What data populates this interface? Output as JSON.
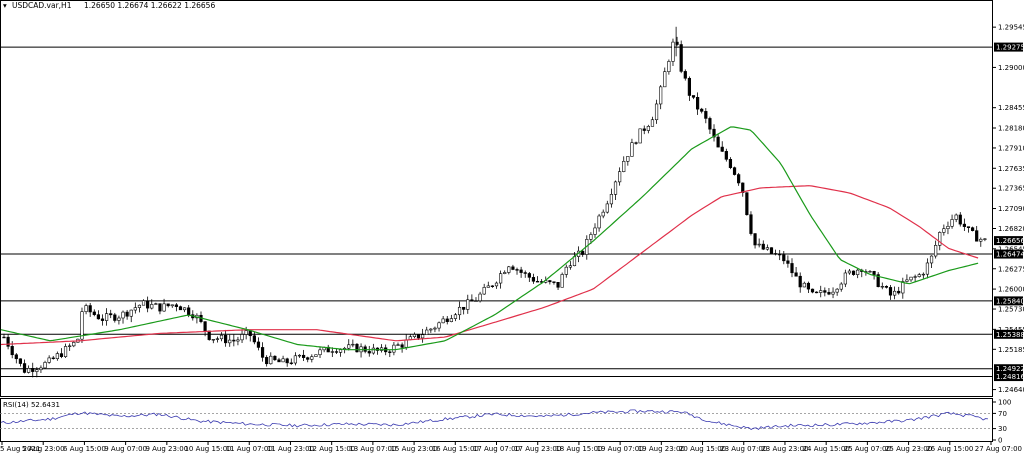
{
  "header": {
    "symbol": "USDCAD.var,H1",
    "ohlc": "1.26650 1.26674 1.26622 1.26656"
  },
  "colors": {
    "up_candle": "#000000",
    "down_candle": "#000000",
    "ma_fast": "#1a9a1a",
    "ma_slow": "#e0304a",
    "rsi_line": "#3a3ab0",
    "level_line": "#000000"
  },
  "chart_data": {
    "type": "line",
    "title": "",
    "price_axis": {
      "ticks": [
        "1.29545",
        "1.29000",
        "1.28455",
        "1.28180",
        "1.27910",
        "1.27635",
        "1.27365",
        "1.27090",
        "1.26820",
        "1.26545",
        "1.26275",
        "1.26000",
        "1.25730",
        "1.25455",
        "1.25185",
        "1.24640"
      ],
      "ylim": [
        1.2458,
        1.2975
      ]
    },
    "price_levels": [
      {
        "label": "1.29275",
        "value": 1.29275
      },
      {
        "label": "1.26474",
        "value": 1.26474
      },
      {
        "label": "1.25840",
        "value": 1.2584
      },
      {
        "label": "1.25388",
        "value": 1.25388
      },
      {
        "label": "1.24922",
        "value": 1.24922
      },
      {
        "label": "1.24816",
        "value": 1.24816
      }
    ],
    "current_price": {
      "label": "1.26656",
      "value": 1.26656
    },
    "time_axis": [
      "5 Aug 2021",
      "5 Aug 23:00",
      "6 Aug 15:00",
      "9 Aug 07:00",
      "9 Aug 23:00",
      "10 Aug 15:00",
      "11 Aug 07:00",
      "11 Aug 23:00",
      "12 Aug 15:00",
      "13 Aug 07:00",
      "15 Aug 23:00",
      "16 Aug 15:00",
      "17 Aug 07:00",
      "17 Aug 23:00",
      "18 Aug 15:00",
      "19 Aug 07:00",
      "19 Aug 23:00",
      "20 Aug 15:00",
      "23 Aug 07:00",
      "23 Aug 23:00",
      "24 Aug 15:00",
      "25 Aug 07:00",
      "25 Aug 23:00",
      "26 Aug 15:00",
      "27 Aug 07:00"
    ],
    "price_keypoints": [
      [
        0,
        1.2535
      ],
      [
        0.02,
        1.249
      ],
      [
        0.045,
        1.25
      ],
      [
        0.075,
        1.253
      ],
      [
        0.08,
        1.2575
      ],
      [
        0.1,
        1.256
      ],
      [
        0.12,
        1.2565
      ],
      [
        0.14,
        1.258
      ],
      [
        0.16,
        1.2575
      ],
      [
        0.175,
        1.258
      ],
      [
        0.195,
        1.2565
      ],
      [
        0.21,
        1.2535
      ],
      [
        0.235,
        1.253
      ],
      [
        0.25,
        1.254
      ],
      [
        0.265,
        1.2505
      ],
      [
        0.285,
        1.25
      ],
      [
        0.31,
        1.251
      ],
      [
        0.335,
        1.252
      ],
      [
        0.36,
        1.252
      ],
      [
        0.385,
        1.2515
      ],
      [
        0.405,
        1.2525
      ],
      [
        0.42,
        1.2535
      ],
      [
        0.44,
        1.255
      ],
      [
        0.46,
        1.257
      ],
      [
        0.48,
        1.2585
      ],
      [
        0.5,
        1.261
      ],
      [
        0.515,
        1.2635
      ],
      [
        0.53,
        1.262
      ],
      [
        0.545,
        1.261
      ],
      [
        0.565,
        1.2605
      ],
      [
        0.575,
        1.2635
      ],
      [
        0.59,
        1.265
      ],
      [
        0.6,
        1.268
      ],
      [
        0.615,
        1.272
      ],
      [
        0.63,
        1.277
      ],
      [
        0.645,
        1.2805
      ],
      [
        0.66,
        1.283
      ],
      [
        0.668,
        1.286
      ],
      [
        0.675,
        1.29
      ],
      [
        0.684,
        1.294
      ],
      [
        0.69,
        1.29
      ],
      [
        0.7,
        1.286
      ],
      [
        0.715,
        1.283
      ],
      [
        0.728,
        1.279
      ],
      [
        0.74,
        1.277
      ],
      [
        0.752,
        1.274
      ],
      [
        0.758,
        1.27
      ],
      [
        0.765,
        1.266
      ],
      [
        0.78,
        1.265
      ],
      [
        0.795,
        1.264
      ],
      [
        0.81,
        1.261
      ],
      [
        0.825,
        1.259
      ],
      [
        0.845,
        1.26
      ],
      [
        0.86,
        1.262
      ],
      [
        0.875,
        1.263
      ],
      [
        0.89,
        1.261
      ],
      [
        0.905,
        1.259
      ],
      [
        0.92,
        1.261
      ],
      [
        0.935,
        1.262
      ],
      [
        0.945,
        1.264
      ],
      [
        0.955,
        1.268
      ],
      [
        0.97,
        1.27
      ],
      [
        0.985,
        1.2675
      ],
      [
        1.0,
        1.2665
      ]
    ],
    "series": [
      {
        "values_kp": [
          [
            0,
            1.2545
          ],
          [
            0.05,
            1.253
          ],
          [
            0.12,
            1.2545
          ],
          [
            0.19,
            1.2565
          ],
          [
            0.25,
            1.2545
          ],
          [
            0.3,
            1.2525
          ],
          [
            0.35,
            1.2518
          ],
          [
            0.4,
            1.2518
          ],
          [
            0.45,
            1.253
          ],
          [
            0.5,
            1.2565
          ],
          [
            0.55,
            1.261
          ],
          [
            0.6,
            1.2665
          ],
          [
            0.65,
            1.2725
          ],
          [
            0.7,
            1.279
          ],
          [
            0.74,
            1.282
          ],
          [
            0.76,
            1.2815
          ],
          [
            0.79,
            1.277
          ],
          [
            0.82,
            1.27
          ],
          [
            0.85,
            1.264
          ],
          [
            0.88,
            1.262
          ],
          [
            0.92,
            1.2607
          ],
          [
            0.96,
            1.2625
          ],
          [
            0.99,
            1.2635
          ]
        ]
      },
      {
        "values_kp": [
          [
            0,
            1.2525
          ],
          [
            0.08,
            1.253
          ],
          [
            0.16,
            1.254
          ],
          [
            0.25,
            1.2545
          ],
          [
            0.32,
            1.2545
          ],
          [
            0.4,
            1.253
          ],
          [
            0.45,
            1.2535
          ],
          [
            0.5,
            1.2555
          ],
          [
            0.55,
            1.2575
          ],
          [
            0.6,
            1.26
          ],
          [
            0.65,
            1.265
          ],
          [
            0.7,
            1.27
          ],
          [
            0.73,
            1.2725
          ],
          [
            0.77,
            1.2737
          ],
          [
            0.82,
            1.274
          ],
          [
            0.86,
            1.273
          ],
          [
            0.9,
            1.271
          ],
          [
            0.93,
            1.2685
          ],
          [
            0.96,
            1.2655
          ],
          [
            0.99,
            1.2642
          ]
        ]
      }
    ],
    "rsi": {
      "title": "RSI(14) 52.6431",
      "ticks": [
        "100",
        "70",
        "30",
        "0"
      ],
      "levels": [
        70,
        30
      ],
      "values_kp": [
        [
          0,
          45
        ],
        [
          0.05,
          55
        ],
        [
          0.08,
          72
        ],
        [
          0.12,
          62
        ],
        [
          0.16,
          68
        ],
        [
          0.2,
          50
        ],
        [
          0.25,
          42
        ],
        [
          0.3,
          38
        ],
        [
          0.35,
          42
        ],
        [
          0.4,
          40
        ],
        [
          0.45,
          55
        ],
        [
          0.5,
          68
        ],
        [
          0.55,
          62
        ],
        [
          0.6,
          72
        ],
        [
          0.65,
          76
        ],
        [
          0.69,
          74
        ],
        [
          0.72,
          48
        ],
        [
          0.76,
          30
        ],
        [
          0.8,
          38
        ],
        [
          0.84,
          40
        ],
        [
          0.88,
          45
        ],
        [
          0.92,
          52
        ],
        [
          0.96,
          70
        ],
        [
          0.985,
          62
        ],
        [
          1.0,
          53
        ]
      ]
    }
  }
}
